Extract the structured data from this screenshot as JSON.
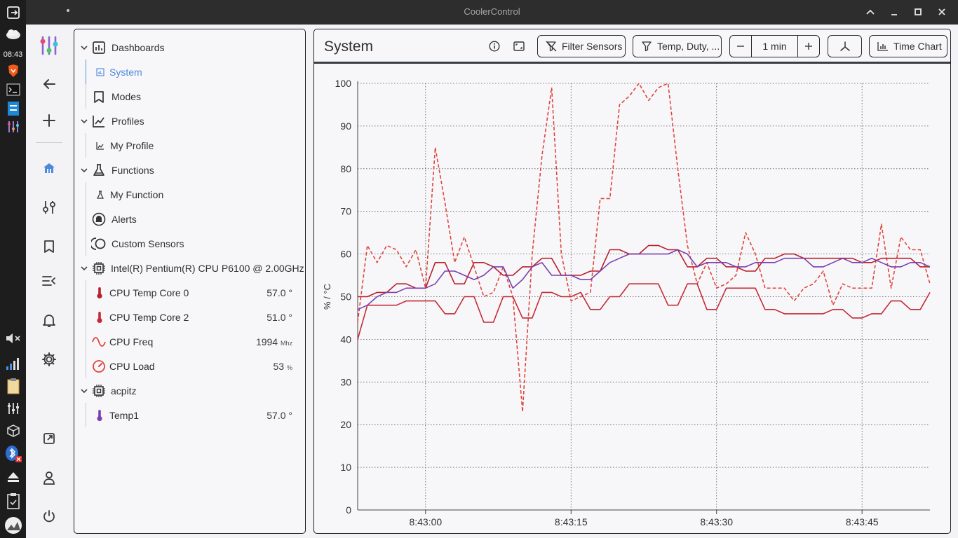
{
  "os": {
    "clock": "08:43",
    "dock_icons": [
      "exit-icon",
      "weather-icon",
      "brave-browser-icon",
      "terminal-icon",
      "file-manager-icon",
      "coolercontrol-icon",
      "volume-muted-icon",
      "signal-icon",
      "clipboard-icon",
      "mixer-icon",
      "package-icon",
      "bluetooth-off-icon",
      "eject-icon",
      "clipboard-check-icon",
      "gauge-icon"
    ]
  },
  "window": {
    "title": "CoolerControl"
  },
  "tree": {
    "dashboards": "Dashboards",
    "system": "System",
    "modes": "Modes",
    "profiles": "Profiles",
    "my_profile": "My Profile",
    "functions": "Functions",
    "my_function": "My Function",
    "alerts": "Alerts",
    "custom_sensors": "Custom Sensors",
    "cpu_device": "Intel(R) Pentium(R) CPU P6100 @ 2.00GHz",
    "sensors": [
      {
        "label": "CPU Temp Core 0",
        "value": "57.0 °",
        "unit": "",
        "color": "#b81f2a"
      },
      {
        "label": "CPU Temp Core 2",
        "value": "51.0 °",
        "unit": "",
        "color": "#c42a35"
      },
      {
        "label": "CPU Freq",
        "value": "1994",
        "unit": "Mhz",
        "color": "#e0453c"
      },
      {
        "label": "CPU Load",
        "value": "53",
        "unit": "%",
        "color": "#e0453c"
      }
    ],
    "acpi_device": "acpitz",
    "temp1": {
      "label": "Temp1",
      "value": "57.0 °",
      "color": "#7b3fb0"
    }
  },
  "dashboard": {
    "title": "System",
    "filter_sensors": "Filter Sensors",
    "filter_types": "Temp, Duty, ...",
    "time_range": "1 min",
    "chart_type": "Time Chart"
  },
  "chart_data": {
    "type": "line",
    "ylabel": "% / °C",
    "ylim": [
      0,
      100
    ],
    "yticks": [
      0,
      10,
      20,
      30,
      40,
      50,
      60,
      70,
      80,
      90,
      100
    ],
    "xticks": [
      "8:43:00",
      "8:43:15",
      "8:43:30",
      "8:43:45"
    ],
    "xtick_seconds": [
      0,
      15,
      30,
      45
    ],
    "xlim_seconds": [
      -7,
      52
    ],
    "grid": true,
    "series": [
      {
        "color": "#e0453c",
        "dashed": true,
        "points": [
          [
            -7,
            44
          ],
          [
            -6,
            62
          ],
          [
            -5,
            58
          ],
          [
            -4,
            62
          ],
          [
            -3,
            61
          ],
          [
            -2,
            57
          ],
          [
            -1,
            61
          ],
          [
            0,
            52
          ],
          [
            1,
            85
          ],
          [
            2,
            72
          ],
          [
            3,
            58
          ],
          [
            4,
            64
          ],
          [
            5,
            57
          ],
          [
            6,
            50
          ],
          [
            7,
            51
          ],
          [
            8,
            57
          ],
          [
            9,
            50
          ],
          [
            10,
            23
          ],
          [
            11,
            60
          ],
          [
            12,
            83
          ],
          [
            13,
            99
          ],
          [
            14,
            60
          ],
          [
            15,
            49
          ],
          [
            16,
            50
          ],
          [
            17,
            51
          ],
          [
            18,
            73
          ],
          [
            19,
            73
          ],
          [
            20,
            95
          ],
          [
            21,
            97
          ],
          [
            22,
            100
          ],
          [
            23,
            96
          ],
          [
            24,
            99
          ],
          [
            25,
            100
          ],
          [
            26,
            80
          ],
          [
            27,
            62
          ],
          [
            28,
            53
          ],
          [
            29,
            58
          ],
          [
            30,
            52
          ],
          [
            31,
            53
          ],
          [
            32,
            55
          ],
          [
            33,
            65
          ],
          [
            34,
            60
          ],
          [
            35,
            52
          ],
          [
            36,
            52
          ],
          [
            37,
            52
          ],
          [
            38,
            49
          ],
          [
            39,
            52
          ],
          [
            40,
            53
          ],
          [
            41,
            56
          ],
          [
            42,
            48
          ],
          [
            43,
            53
          ],
          [
            44,
            52
          ],
          [
            45,
            52
          ],
          [
            46,
            52
          ],
          [
            47,
            67
          ],
          [
            48,
            52
          ],
          [
            49,
            64
          ],
          [
            50,
            61
          ],
          [
            51,
            61
          ],
          [
            52,
            53
          ]
        ]
      },
      {
        "color": "#b81f2a",
        "dashed": false,
        "points": [
          [
            -7,
            50
          ],
          [
            -6,
            50
          ],
          [
            -5,
            51
          ],
          [
            -4,
            51
          ],
          [
            -3,
            53
          ],
          [
            -2,
            53
          ],
          [
            -1,
            52
          ],
          [
            0,
            52
          ],
          [
            1,
            58
          ],
          [
            2,
            58
          ],
          [
            3,
            53
          ],
          [
            4,
            53
          ],
          [
            5,
            58
          ],
          [
            6,
            58
          ],
          [
            7,
            57
          ],
          [
            8,
            55
          ],
          [
            9,
            55
          ],
          [
            10,
            57
          ],
          [
            11,
            57
          ],
          [
            12,
            59
          ],
          [
            13,
            59
          ],
          [
            14,
            55
          ],
          [
            15,
            55
          ],
          [
            16,
            55
          ],
          [
            17,
            56
          ],
          [
            18,
            56
          ],
          [
            19,
            61
          ],
          [
            20,
            61
          ],
          [
            21,
            60
          ],
          [
            22,
            60
          ],
          [
            23,
            62
          ],
          [
            24,
            62
          ],
          [
            25,
            61
          ],
          [
            26,
            61
          ],
          [
            27,
            57
          ],
          [
            28,
            57
          ],
          [
            29,
            59
          ],
          [
            30,
            59
          ],
          [
            31,
            57
          ],
          [
            32,
            57
          ],
          [
            33,
            56
          ],
          [
            34,
            56
          ],
          [
            35,
            59
          ],
          [
            36,
            59
          ],
          [
            37,
            60
          ],
          [
            38,
            60
          ],
          [
            39,
            59
          ],
          [
            40,
            59
          ],
          [
            41,
            59
          ],
          [
            42,
            59
          ],
          [
            43,
            59
          ],
          [
            44,
            59
          ],
          [
            45,
            58
          ],
          [
            46,
            58
          ],
          [
            47,
            59
          ],
          [
            48,
            59
          ],
          [
            49,
            59
          ],
          [
            50,
            59
          ],
          [
            51,
            57
          ],
          [
            52,
            57
          ]
        ]
      },
      {
        "color": "#c42a35",
        "dashed": false,
        "points": [
          [
            -7,
            40
          ],
          [
            -6,
            48
          ],
          [
            -5,
            48
          ],
          [
            -4,
            48
          ],
          [
            -3,
            48
          ],
          [
            -2,
            49
          ],
          [
            -1,
            49
          ],
          [
            0,
            49
          ],
          [
            1,
            49
          ],
          [
            2,
            46
          ],
          [
            3,
            46
          ],
          [
            4,
            50
          ],
          [
            5,
            50
          ],
          [
            6,
            44
          ],
          [
            7,
            44
          ],
          [
            8,
            50
          ],
          [
            9,
            50
          ],
          [
            10,
            45
          ],
          [
            11,
            45
          ],
          [
            12,
            51
          ],
          [
            13,
            51
          ],
          [
            14,
            50
          ],
          [
            15,
            50
          ],
          [
            16,
            51
          ],
          [
            17,
            47
          ],
          [
            18,
            47
          ],
          [
            19,
            50
          ],
          [
            20,
            50
          ],
          [
            21,
            53
          ],
          [
            22,
            53
          ],
          [
            23,
            53
          ],
          [
            24,
            53
          ],
          [
            25,
            48
          ],
          [
            26,
            48
          ],
          [
            27,
            53
          ],
          [
            28,
            53
          ],
          [
            29,
            47
          ],
          [
            30,
            47
          ],
          [
            31,
            52
          ],
          [
            32,
            52
          ],
          [
            33,
            52
          ],
          [
            34,
            52
          ],
          [
            35,
            47
          ],
          [
            36,
            47
          ],
          [
            37,
            46
          ],
          [
            38,
            46
          ],
          [
            39,
            46
          ],
          [
            40,
            46
          ],
          [
            41,
            46
          ],
          [
            42,
            47
          ],
          [
            43,
            47
          ],
          [
            44,
            45
          ],
          [
            45,
            45
          ],
          [
            46,
            46
          ],
          [
            47,
            46
          ],
          [
            48,
            49
          ],
          [
            49,
            49
          ],
          [
            50,
            47
          ],
          [
            51,
            47
          ],
          [
            52,
            51
          ]
        ]
      },
      {
        "color": "#7b3fb0",
        "dashed": false,
        "points": [
          [
            -7,
            47
          ],
          [
            -6,
            48
          ],
          [
            -5,
            50
          ],
          [
            -4,
            51
          ],
          [
            -3,
            51
          ],
          [
            -2,
            52
          ],
          [
            -1,
            52
          ],
          [
            0,
            52
          ],
          [
            1,
            53
          ],
          [
            2,
            56
          ],
          [
            3,
            56
          ],
          [
            4,
            55
          ],
          [
            5,
            54
          ],
          [
            6,
            55
          ],
          [
            7,
            57
          ],
          [
            8,
            57
          ],
          [
            9,
            52
          ],
          [
            10,
            54
          ],
          [
            11,
            57
          ],
          [
            12,
            58
          ],
          [
            13,
            55
          ],
          [
            14,
            55
          ],
          [
            15,
            55
          ],
          [
            16,
            54
          ],
          [
            17,
            54
          ],
          [
            18,
            56
          ],
          [
            19,
            58
          ],
          [
            20,
            59
          ],
          [
            21,
            60
          ],
          [
            22,
            60
          ],
          [
            23,
            60
          ],
          [
            24,
            60
          ],
          [
            25,
            60
          ],
          [
            26,
            61
          ],
          [
            27,
            60
          ],
          [
            28,
            57
          ],
          [
            29,
            58
          ],
          [
            30,
            58
          ],
          [
            31,
            58
          ],
          [
            32,
            57
          ],
          [
            33,
            57
          ],
          [
            34,
            58
          ],
          [
            35,
            58
          ],
          [
            36,
            58
          ],
          [
            37,
            59
          ],
          [
            38,
            59
          ],
          [
            39,
            59
          ],
          [
            40,
            57
          ],
          [
            41,
            57
          ],
          [
            42,
            58
          ],
          [
            43,
            59
          ],
          [
            44,
            58
          ],
          [
            45,
            58
          ],
          [
            46,
            59
          ],
          [
            47,
            58
          ],
          [
            48,
            57
          ],
          [
            49,
            57
          ],
          [
            50,
            58
          ],
          [
            51,
            58
          ],
          [
            52,
            57
          ]
        ]
      }
    ]
  }
}
